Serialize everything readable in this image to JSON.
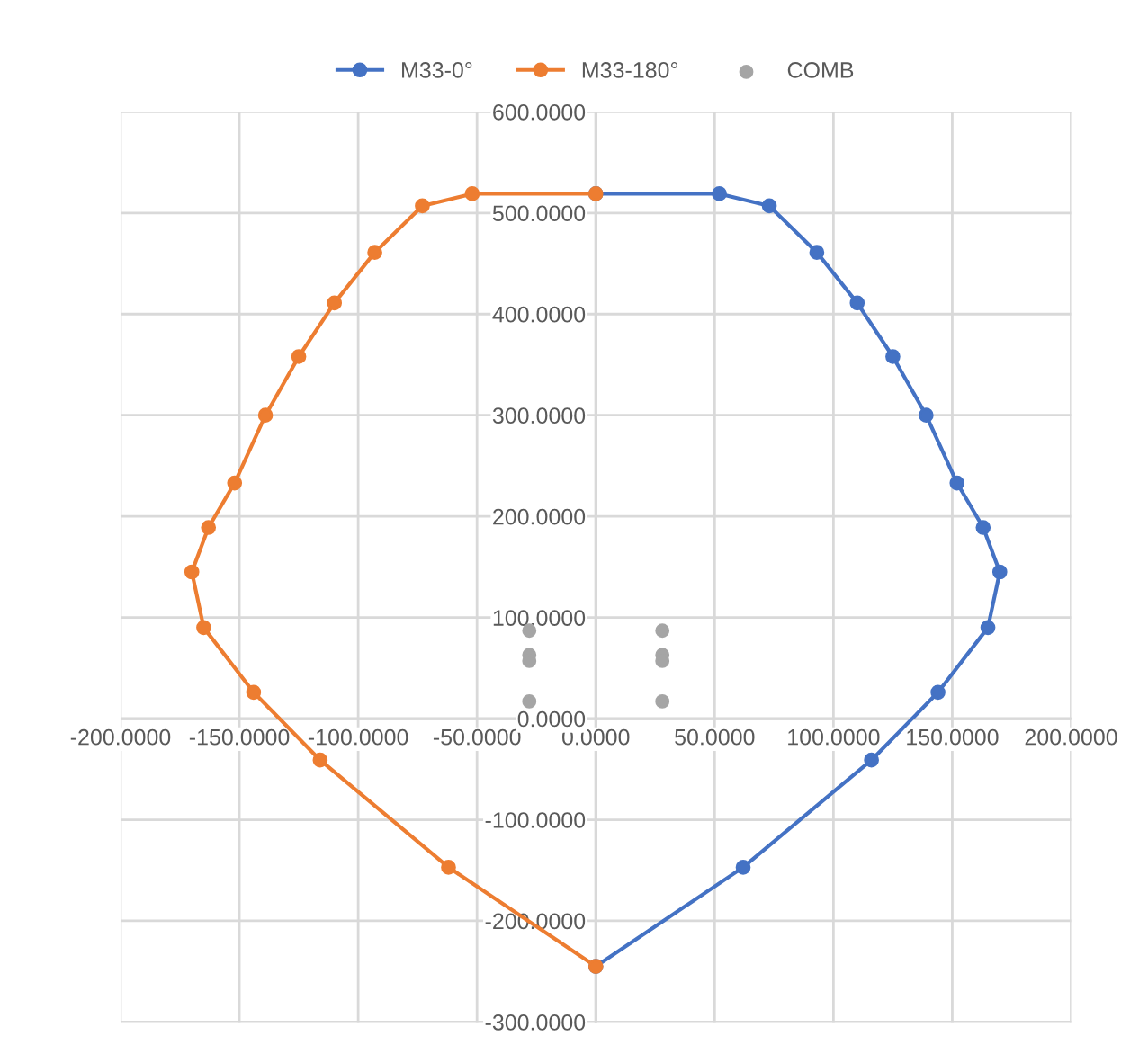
{
  "chart_data": {
    "type": "line",
    "series": [
      {
        "name": "M33-0°",
        "color": "#4472c4",
        "x": [
          0,
          52,
          73,
          93,
          110,
          125,
          139,
          152,
          163,
          170,
          165,
          144,
          116,
          62,
          0
        ],
        "values": [
          519,
          519,
          507,
          461,
          411,
          358,
          300,
          233,
          189,
          145,
          90,
          26,
          -41,
          -147,
          -245
        ]
      },
      {
        "name": "M33-180°",
        "color": "#ed7d31",
        "x": [
          0,
          -52,
          -73,
          -93,
          -110,
          -125,
          -139,
          -152,
          -163,
          -170,
          -165,
          -144,
          -116,
          -62,
          0
        ],
        "values": [
          519,
          519,
          507,
          461,
          411,
          358,
          300,
          233,
          189,
          145,
          90,
          26,
          -41,
          -147,
          -245
        ]
      },
      {
        "name": "COMB",
        "type": "scatter",
        "color": "#a5a5a5",
        "x": [
          28,
          28,
          28,
          28,
          -28,
          -28,
          -28,
          -28
        ],
        "values": [
          87,
          63,
          57,
          17,
          87,
          63,
          57,
          17
        ]
      }
    ],
    "xlim": [
      -200,
      200
    ],
    "xticks": [
      {
        "value": -200,
        "label": "-200.0000"
      },
      {
        "value": -150,
        "label": "-150.0000"
      },
      {
        "value": -100,
        "label": "-100.0000"
      },
      {
        "value": -50,
        "label": "-50.0000"
      },
      {
        "value": 0,
        "label": "0.0000"
      },
      {
        "value": 50,
        "label": "50.0000"
      },
      {
        "value": 100,
        "label": "100.0000"
      },
      {
        "value": 150,
        "label": "150.0000"
      },
      {
        "value": 200,
        "label": "200.0000"
      }
    ],
    "ylim": [
      -300,
      600
    ],
    "yticks": [
      {
        "value": -300,
        "label": "-300.0000"
      },
      {
        "value": -200,
        "label": "-200.0000"
      },
      {
        "value": -100,
        "label": "-100.0000"
      },
      {
        "value": 0,
        "label": "0.0000"
      },
      {
        "value": 100,
        "label": "100.0000"
      },
      {
        "value": 200,
        "label": "200.0000"
      },
      {
        "value": 300,
        "label": "300.0000"
      },
      {
        "value": 400,
        "label": "400.0000"
      },
      {
        "value": 500,
        "label": "500.0000"
      },
      {
        "value": 600,
        "label": "600.0000"
      }
    ],
    "grid": true,
    "legend": "top",
    "marker": "circle",
    "line_style": "solid"
  }
}
